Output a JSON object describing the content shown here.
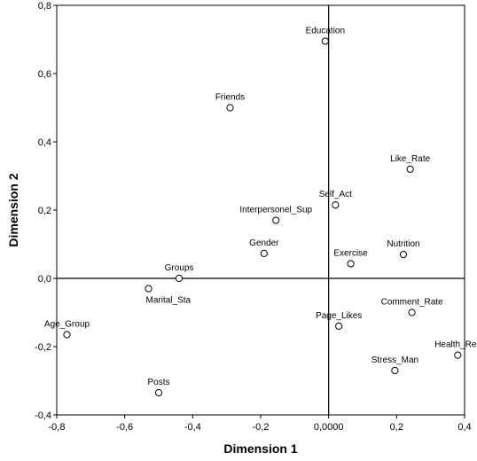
{
  "chart_data": {
    "type": "scatter",
    "title": "",
    "xlabel": "Dimension 1",
    "ylabel": "Dimension 2",
    "xlim": [
      -0.8,
      0.4
    ],
    "ylim": [
      -0.4,
      0.8
    ],
    "x_ticks": [
      "-0,8",
      "-0,6",
      "-0,4",
      "-0,2",
      "0,0000",
      "0,2",
      "0,4"
    ],
    "y_ticks": [
      "-0,4",
      "-0,2",
      "0,0",
      "0,2",
      "0,4",
      "0,6",
      "0,8"
    ],
    "reference_lines": {
      "x": 0,
      "y": 0
    },
    "grid": false,
    "points": [
      {
        "label": "Education",
        "x": -0.01,
        "y": 0.695
      },
      {
        "label": "Friends",
        "x": -0.29,
        "y": 0.5
      },
      {
        "label": "Like_Rate",
        "x": 0.24,
        "y": 0.32
      },
      {
        "label": "Self_Act",
        "x": 0.02,
        "y": 0.215
      },
      {
        "label": "Interpersonel_Sup",
        "x": -0.155,
        "y": 0.17
      },
      {
        "label": "Gender",
        "x": -0.19,
        "y": 0.073
      },
      {
        "label": "Exercise",
        "x": 0.065,
        "y": 0.043
      },
      {
        "label": "Nutrition",
        "x": 0.22,
        "y": 0.07
      },
      {
        "label": "Groups",
        "x": -0.44,
        "y": 0.0
      },
      {
        "label": "Marital_Sta",
        "x": -0.53,
        "y": -0.03
      },
      {
        "label": "Age_Group",
        "x": -0.77,
        "y": -0.165
      },
      {
        "label": "Comment_Rate",
        "x": 0.245,
        "y": -0.1
      },
      {
        "label": "Page_Likes",
        "x": 0.03,
        "y": -0.14
      },
      {
        "label": "Health_Res",
        "x": 0.38,
        "y": -0.225
      },
      {
        "label": "Stress_Man",
        "x": 0.195,
        "y": -0.27
      },
      {
        "label": "Posts",
        "x": -0.5,
        "y": -0.335
      }
    ]
  }
}
